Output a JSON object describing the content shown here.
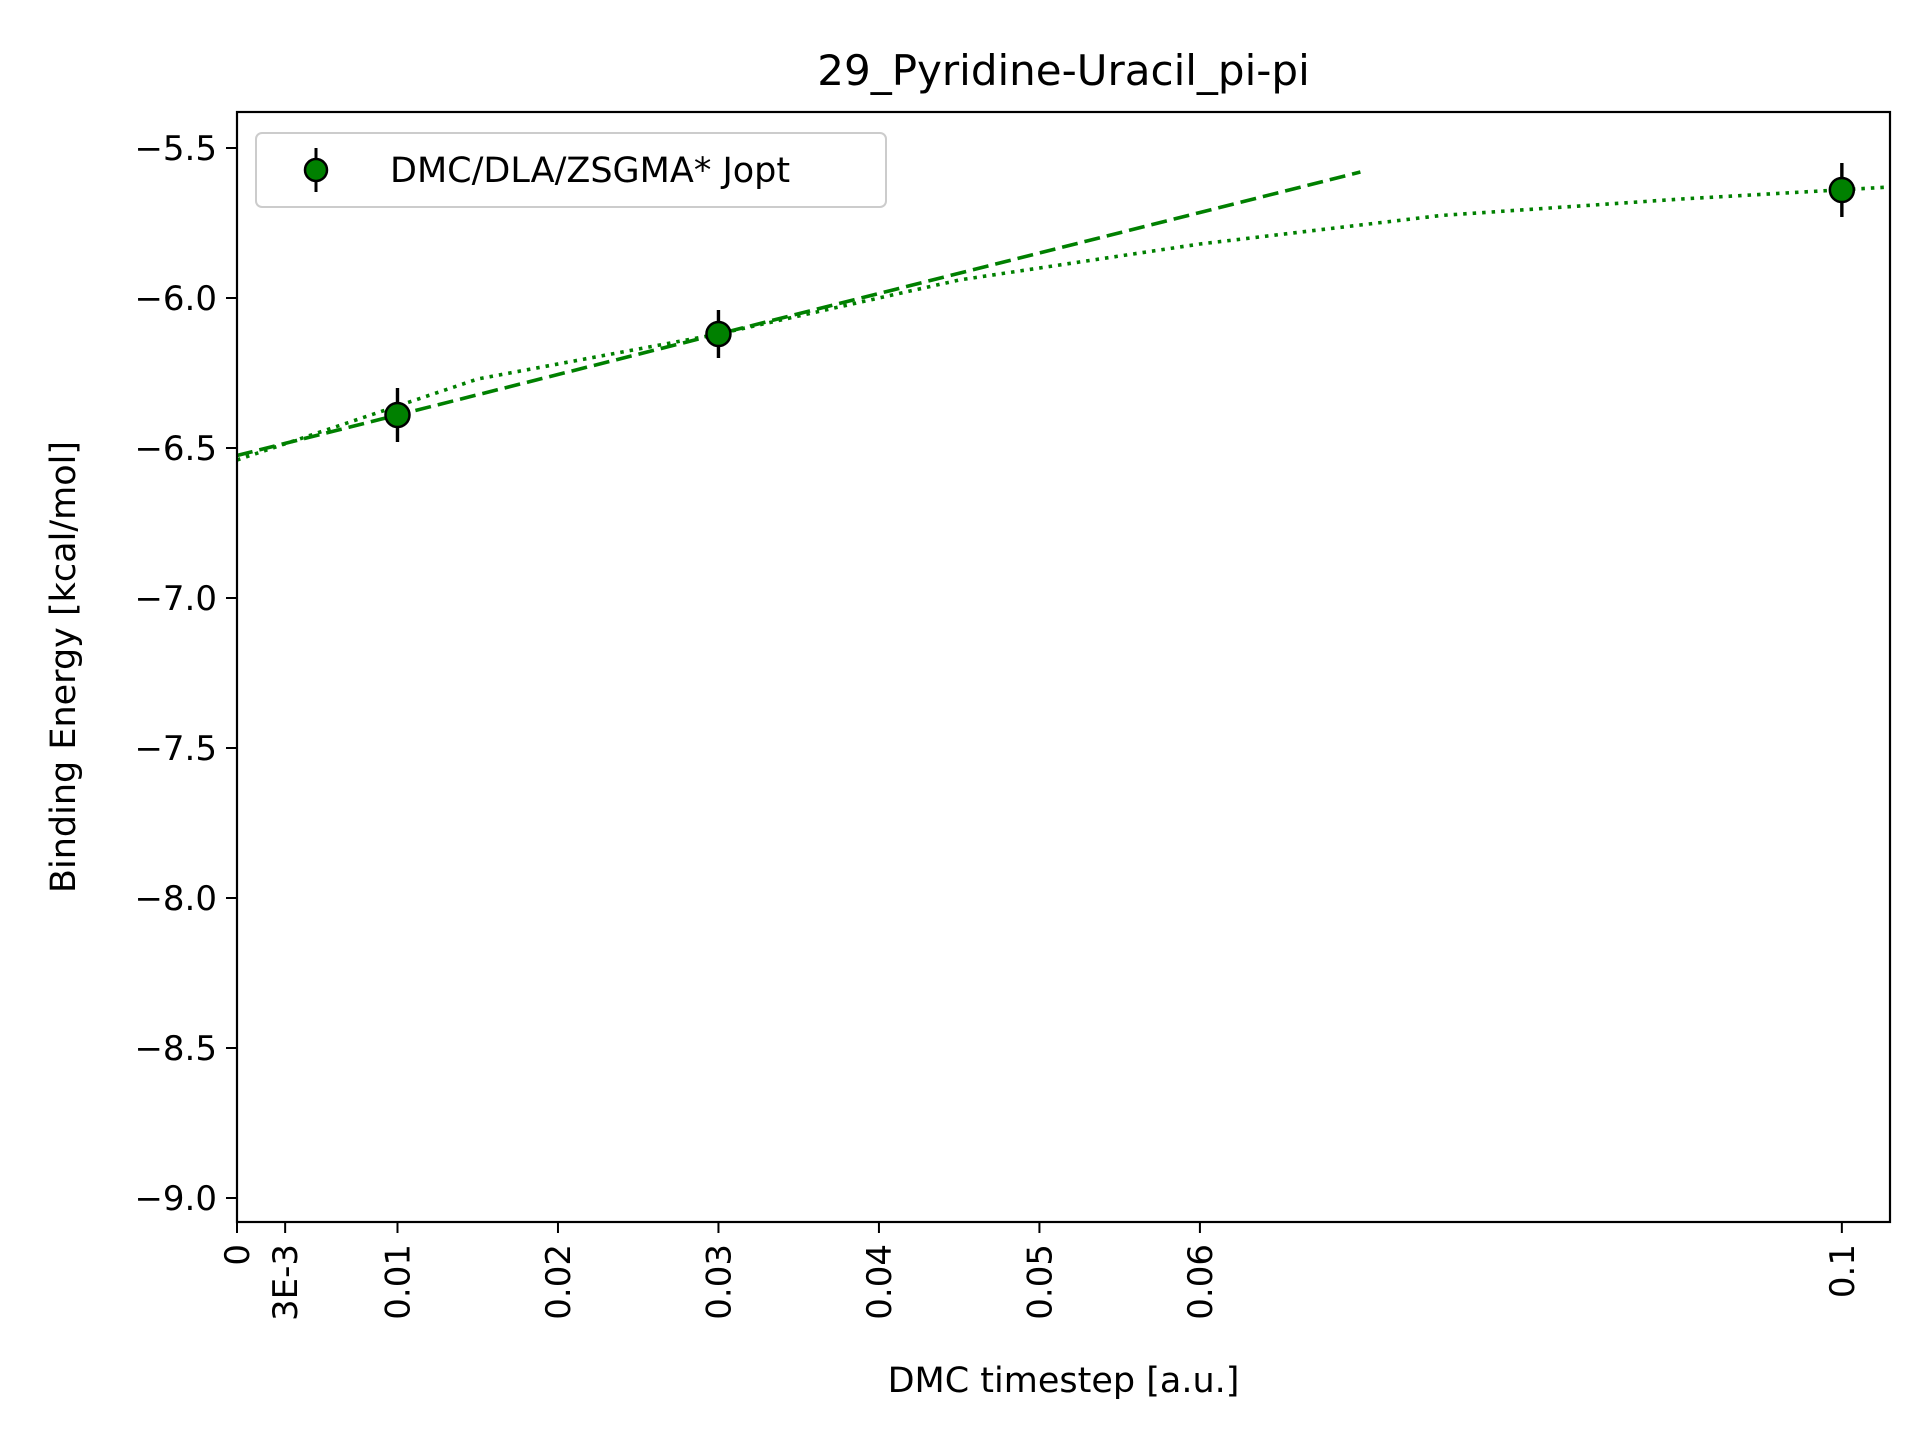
{
  "chart_data": {
    "type": "scatter",
    "title": "29_Pyridine-Uracil_pi-pi",
    "xlabel": "DMC timestep [a.u.]",
    "ylabel": "Binding Energy [kcal/mol]",
    "xlim": [
      0,
      0.103
    ],
    "ylim": [
      -9.08,
      -5.38
    ],
    "x_ticks": [
      {
        "value": 0,
        "label": "0"
      },
      {
        "value": 0.003,
        "label": "3E-3"
      },
      {
        "value": 0.01,
        "label": "0.01"
      },
      {
        "value": 0.02,
        "label": "0.02"
      },
      {
        "value": 0.03,
        "label": "0.03"
      },
      {
        "value": 0.04,
        "label": "0.04"
      },
      {
        "value": 0.05,
        "label": "0.05"
      },
      {
        "value": 0.06,
        "label": "0.06"
      },
      {
        "value": 0.1,
        "label": "0.1"
      }
    ],
    "y_ticks": [
      {
        "value": -5.5,
        "label": "−5.5"
      },
      {
        "value": -6.0,
        "label": "−6.0"
      },
      {
        "value": -6.5,
        "label": "−6.5"
      },
      {
        "value": -7.0,
        "label": "−7.0"
      },
      {
        "value": -7.5,
        "label": "−7.5"
      },
      {
        "value": -8.0,
        "label": "−8.0"
      },
      {
        "value": -8.5,
        "label": "−8.5"
      },
      {
        "value": -9.0,
        "label": "−9.0"
      }
    ],
    "series": [
      {
        "name": "DMC/DLA/ZSGMA* Jopt",
        "color": "#008000",
        "points": [
          {
            "x": 0.01,
            "y": -6.39,
            "err": 0.09
          },
          {
            "x": 0.03,
            "y": -6.12,
            "err": 0.08
          },
          {
            "x": 0.1,
            "y": -5.64,
            "err": 0.09
          }
        ]
      }
    ],
    "fits": [
      {
        "style": "dashed",
        "color": "#008000",
        "x": [
          0,
          0.07
        ],
        "y": [
          -6.525,
          -5.58
        ]
      },
      {
        "style": "dotted",
        "color": "#008000",
        "x": [
          0,
          0.015,
          0.03,
          0.045,
          0.06,
          0.075,
          0.09,
          0.103
        ],
        "y": [
          -6.54,
          -6.27,
          -6.12,
          -5.94,
          -5.82,
          -5.725,
          -5.67,
          -5.63
        ]
      }
    ],
    "grid": false,
    "legend": "top-left"
  }
}
